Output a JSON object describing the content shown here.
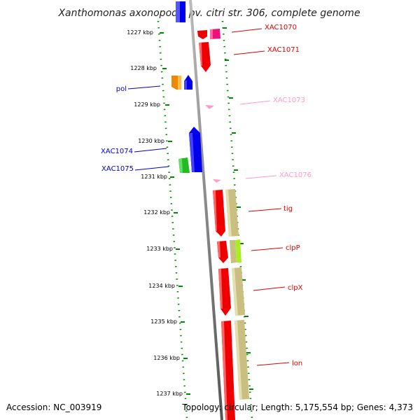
{
  "title": "Xanthomonas axonopodis pv. citri str. 306, complete genome",
  "accession": "Accession: NC_003919",
  "topology": "Topology: circular; Length: 5,175,554 bp; Genes: 4,373",
  "scale": [
    {
      "label": "1227 kbp"
    },
    {
      "label": "1228 kbp"
    },
    {
      "label": "1229 kbp"
    },
    {
      "label": "1230 kbp"
    },
    {
      "label": "1231 kbp"
    },
    {
      "label": "1232 kbp"
    },
    {
      "label": "1233 kbp"
    },
    {
      "label": "1234 kbp"
    },
    {
      "label": "1235 kbp"
    },
    {
      "label": "1236 kbp"
    },
    {
      "label": "1237 kbp"
    }
  ],
  "gene_labels": [
    {
      "text": "XAC1070",
      "color": "#e00000"
    },
    {
      "text": "XAC1071",
      "color": "#e00000"
    },
    {
      "text": "pol",
      "color": "#0000cc"
    },
    {
      "text": "XAC1073",
      "color": "#ff99cc"
    },
    {
      "text": "XAC1074",
      "color": "#0000cc"
    },
    {
      "text": "XAC1075",
      "color": "#0000cc"
    },
    {
      "text": "XAC1076",
      "color": "#ff99cc"
    },
    {
      "text": "tig",
      "color": "#e00000"
    },
    {
      "text": "clpP",
      "color": "#e00000"
    },
    {
      "text": "clpX",
      "color": "#e00000"
    },
    {
      "text": "lon",
      "color": "#e00000"
    }
  ],
  "colors": {
    "forward_red": "#ee0000",
    "blue": "#0000ee",
    "orange": "#ee8800",
    "green": "#22bb22",
    "magenta": "#ee1177",
    "pink": "#ff99cc",
    "khaki": "#c8bf80",
    "lime": "#aaee22",
    "dots": "#008800",
    "backbone": "#888888"
  }
}
